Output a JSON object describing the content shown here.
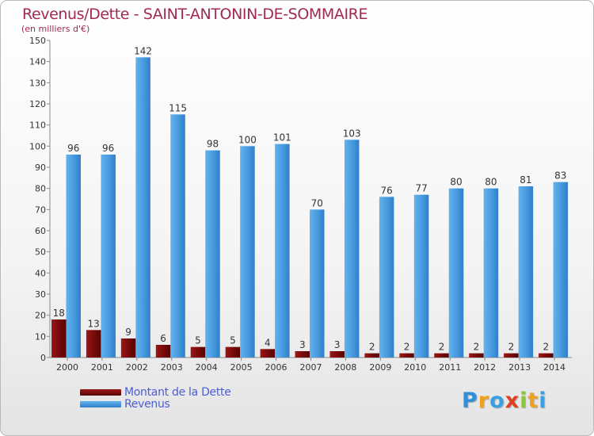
{
  "chart_data": {
    "type": "bar",
    "title": "Revenus/Dette - SAINT-ANTONIN-DE-SOMMAIRE",
    "subtitle": "(en milliers d'€)",
    "categories": [
      "2000",
      "2001",
      "2002",
      "2003",
      "2004",
      "2005",
      "2006",
      "2007",
      "2008",
      "2009",
      "2010",
      "2011",
      "2012",
      "2013",
      "2014"
    ],
    "series": [
      {
        "name": "Montant de la Dette",
        "color": "#7a0a0a",
        "values": [
          18,
          13,
          9,
          6,
          5,
          5,
          4,
          3,
          3,
          2,
          2,
          2,
          2,
          2,
          2
        ]
      },
      {
        "name": "Revenus",
        "color": "#4a9ce0",
        "values": [
          96,
          96,
          142,
          115,
          98,
          100,
          101,
          70,
          103,
          76,
          77,
          80,
          80,
          81,
          83
        ]
      }
    ],
    "ylim": [
      0,
      150
    ],
    "yticks": [
      0,
      10,
      20,
      30,
      40,
      50,
      60,
      70,
      80,
      90,
      100,
      110,
      120,
      130,
      140,
      150
    ],
    "grid": false,
    "legend": "bottom-left",
    "data_labels": true
  },
  "logo": {
    "letters": [
      {
        "ch": "P",
        "color": "#2f8fd8"
      },
      {
        "ch": "r",
        "color": "#f0a020"
      },
      {
        "ch": "o",
        "color": "#3aa0e0"
      },
      {
        "ch": "x",
        "color": "#e04020"
      },
      {
        "ch": "i",
        "color": "#8cc63f"
      },
      {
        "ch": "t",
        "color": "#f0a020"
      },
      {
        "ch": "i",
        "color": "#3aa0e0"
      }
    ]
  }
}
